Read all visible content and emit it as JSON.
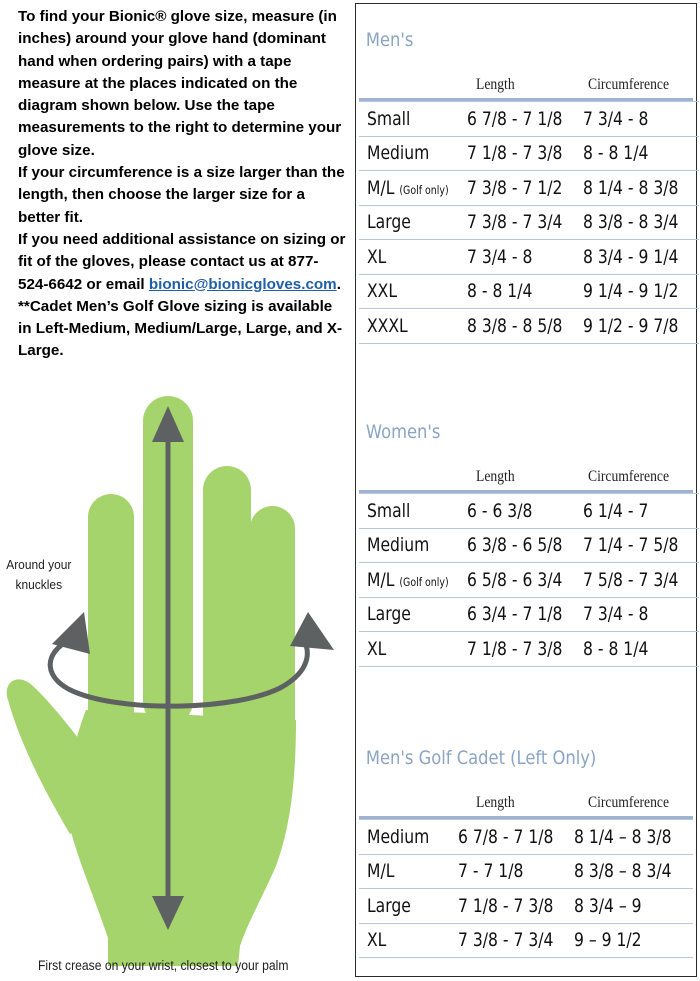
{
  "instructions": {
    "line1": "To find your Bionic® glove size, measure (in inches) around your glove hand (dominant hand when ordering pairs) with a tape measure at the places indicated on the diagram shown below. Use the tape measurements to the right to determine your glove size.",
    "line2": "If your circumference is a size larger than the length, then choose the larger size for a better fit.",
    "line3_before": "If you need additional assistance on sizing or fit of the gloves, please contact us at 877-524-6642 or email ",
    "email": "bionic@bionicgloves.com",
    "line3_after": ".",
    "line4": "**Cadet Men’s Golf Glove sizing is available in Left-Medium, Medium/Large, Large, and X-Large."
  },
  "diagram": {
    "knuckles_label": "Around your knuckles",
    "wrist_label": "First crease on your wrist, closest to your palm",
    "colors": {
      "hand": "#a6d46c",
      "arrows": "#5e6162"
    }
  },
  "sections": [
    {
      "title": "Men's",
      "headers": {
        "length": "Length",
        "circumference": "Circumference"
      },
      "rows": [
        {
          "size": "Small",
          "note": "",
          "length": "6 7/8 - 7 1/8",
          "circ": "7 3/4 - 8"
        },
        {
          "size": "Medium",
          "note": "",
          "length": "7 1/8 - 7 3/8",
          "circ": "8 - 8 1/4"
        },
        {
          "size": "M/L",
          "note": "(Golf only)",
          "length": "7 3/8 - 7 1/2",
          "circ": "8 1/4 - 8 3/8"
        },
        {
          "size": "Large",
          "note": "",
          "length": "7 3/8 - 7 3/4",
          "circ": "8 3/8 - 8 3/4"
        },
        {
          "size": "XL",
          "note": "",
          "length": "7 3/4 - 8",
          "circ": "8 3/4 - 9 1/4"
        },
        {
          "size": "XXL",
          "note": "",
          "length": "8 - 8 1/4",
          "circ": "9 1/4 - 9 1/2"
        },
        {
          "size": "XXXL",
          "note": "",
          "length": "8 3/8 - 8 5/8",
          "circ": "9 1/2 - 9 7/8"
        }
      ]
    },
    {
      "title": "Women's",
      "headers": {
        "length": "Length",
        "circumference": "Circumference"
      },
      "rows": [
        {
          "size": "Small",
          "note": "",
          "length": "6 - 6 3/8",
          "circ": "6 1/4 - 7"
        },
        {
          "size": "Medium",
          "note": "",
          "length": "6 3/8 - 6 5/8",
          "circ": "7 1/4 - 7 5/8"
        },
        {
          "size": "M/L",
          "note": "(Golf only)",
          "length": "6 5/8 - 6 3/4",
          "circ": "7 5/8 - 7 3/4"
        },
        {
          "size": "Large",
          "note": "",
          "length": "6 3/4 - 7 1/8",
          "circ": "7 3/4 - 8"
        },
        {
          "size": "XL",
          "note": "",
          "length": "7 1/8 - 7 3/8",
          "circ": "8 - 8 1/4"
        }
      ]
    },
    {
      "title": "Men's Golf Cadet (Left Only)",
      "headers": {
        "length": "Length",
        "circumference": "Circumference"
      },
      "rows": [
        {
          "size": "Medium",
          "note": "",
          "length": "6 7/8 - 7 1/8",
          "circ": "8 1/4 – 8 3/8"
        },
        {
          "size": "M/L",
          "note": "",
          "length": "7 - 7 1/8",
          "circ": "8 3/8 – 8 3/4"
        },
        {
          "size": "Large",
          "note": "",
          "length": "7 1/8 - 7 3/8",
          "circ": "8 3/4 – 9"
        },
        {
          "size": "XL",
          "note": "",
          "length": "7 3/8 - 7 3/4",
          "circ": "9 – 9 1/2"
        }
      ]
    }
  ]
}
